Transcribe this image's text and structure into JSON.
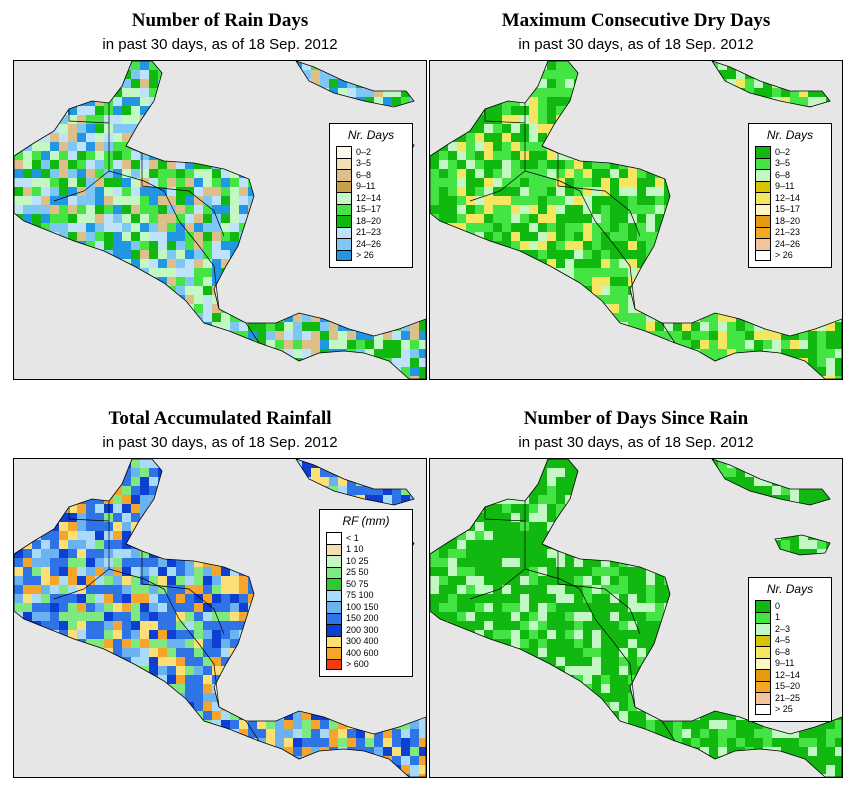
{
  "panels": [
    {
      "id": "rain-days",
      "title": "Number of Rain Days",
      "subtitle": "in past 30 days, as of  18 Sep. 2012",
      "legend_title": "Nr. Days",
      "legend": [
        {
          "label": "0–2",
          "color": "#fdf8ea"
        },
        {
          "label": "3–5",
          "color": "#efdfb6"
        },
        {
          "label": "6–8",
          "color": "#ddc089"
        },
        {
          "label": "9–11",
          "color": "#c8a04c"
        },
        {
          "label": "12–14",
          "color": "#c3f7c3"
        },
        {
          "label": "15–17",
          "color": "#43e443"
        },
        {
          "label": "18–20",
          "color": "#10b810"
        },
        {
          "label": "21–23",
          "color": "#bde2fa"
        },
        {
          "label": "24–26",
          "color": "#7ec6f4"
        },
        {
          "label": "> 26",
          "color": "#2196e2"
        }
      ],
      "dominant": [
        "#10b810",
        "#43e443",
        "#7ec6f4",
        "#bde2fa",
        "#c3f7c3",
        "#2196e2",
        "#ddc089"
      ]
    },
    {
      "id": "max-dry-days",
      "title": "Maximum Consecutive Dry Days",
      "subtitle": "in past 30 days, as of  18 Sep. 2012",
      "legend_title": "Nr. Days",
      "legend": [
        {
          "label": "0–2",
          "color": "#10b810"
        },
        {
          "label": "3–5",
          "color": "#43e443"
        },
        {
          "label": "6–8",
          "color": "#c3f7c3"
        },
        {
          "label": "9–11",
          "color": "#d8c400"
        },
        {
          "label": "12–14",
          "color": "#f4e660"
        },
        {
          "label": "15–17",
          "color": "#fbf6c2"
        },
        {
          "label": "18–20",
          "color": "#e49b10"
        },
        {
          "label": "21–23",
          "color": "#f7a724"
        },
        {
          "label": "24–26",
          "color": "#f5c39a"
        },
        {
          "label": "> 26",
          "color": "#ffffff"
        }
      ],
      "dominant": [
        "#10b810",
        "#10b810",
        "#43e443",
        "#43e443",
        "#c3f7c3",
        "#f4e660"
      ]
    },
    {
      "id": "total-rainfall",
      "title": "Total Accumulated Rainfall",
      "subtitle": "in past 30 days, as of  18 Sep. 2012",
      "legend_title": "RF (mm)",
      "legend": [
        {
          "label": "< 1",
          "color": "#ffffff"
        },
        {
          "label": "1  10",
          "color": "#f2dfb6"
        },
        {
          "label": "10  25",
          "color": "#c4f7c4"
        },
        {
          "label": "25  50",
          "color": "#7fe87f"
        },
        {
          "label": "50  75",
          "color": "#2fca2f"
        },
        {
          "label": "75  100",
          "color": "#a9dbf8"
        },
        {
          "label": "100  150",
          "color": "#6ab2f0"
        },
        {
          "label": "150  200",
          "color": "#2f74e6"
        },
        {
          "label": "200  300",
          "color": "#0c3fd2"
        },
        {
          "label": "300  400",
          "color": "#fcdf75"
        },
        {
          "label": "400  600",
          "color": "#f5a52b"
        },
        {
          "label": "> 600",
          "color": "#f03c10"
        }
      ],
      "dominant": [
        "#2f74e6",
        "#6ab2f0",
        "#2f74e6",
        "#fcdf75",
        "#f5a52b",
        "#0c3fd2",
        "#a9dbf8",
        "#7fe87f"
      ]
    },
    {
      "id": "days-since-rain",
      "title": "Number of Days Since Rain",
      "subtitle": "in past 30 days, as of  18 Sep. 2012",
      "legend_title": "Nr. Days",
      "legend": [
        {
          "label": "0",
          "color": "#10b810"
        },
        {
          "label": "1",
          "color": "#43e443"
        },
        {
          "label": "2–3",
          "color": "#c3f7c3"
        },
        {
          "label": "4–5",
          "color": "#d8c400"
        },
        {
          "label": "6–8",
          "color": "#f4e660"
        },
        {
          "label": "9–11",
          "color": "#fbf6c2"
        },
        {
          "label": "12–14",
          "color": "#e49b10"
        },
        {
          "label": "15–20",
          "color": "#f7a724"
        },
        {
          "label": "21–25",
          "color": "#f5c39a"
        },
        {
          "label": "> 25",
          "color": "#ffffff"
        }
      ],
      "dominant": [
        "#10b810",
        "#10b810",
        "#10b810",
        "#43e443",
        "#c3f7c3"
      ]
    }
  ]
}
